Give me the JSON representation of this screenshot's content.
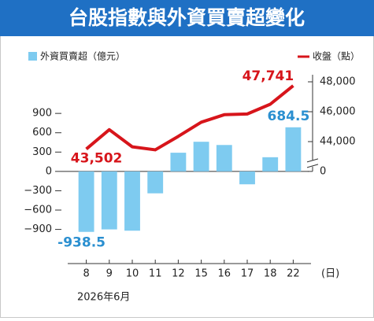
{
  "chart_data": {
    "type": "combo",
    "title": "台股指數與外資買賣超變化",
    "categories": [
      "8",
      "9",
      "10",
      "11",
      "12",
      "15",
      "16",
      "17",
      "18",
      "22"
    ],
    "x_unit": "(日)",
    "date_label": "2026年6月",
    "series": [
      {
        "name": "外資買賣超（億元）",
        "type": "bar",
        "color": "#7ecbf0",
        "label_color": "#2a8fd0",
        "values": [
          -938.5,
          -900,
          -920,
          -340,
          290,
          460,
          410,
          -200,
          220,
          684.5
        ],
        "value_labels": [
          "-938.5",
          null,
          null,
          null,
          null,
          null,
          null,
          null,
          null,
          "684.5"
        ]
      },
      {
        "name": "收盤（點）",
        "type": "line",
        "axis": "y2",
        "color": "#d7151b",
        "label_color": "#d7151b",
        "values": [
          43502,
          44800,
          43650,
          43450,
          44350,
          45300,
          45800,
          45850,
          46500,
          47741
        ],
        "value_labels": [
          "43,502",
          null,
          null,
          null,
          null,
          null,
          null,
          null,
          null,
          "47,741"
        ]
      }
    ],
    "ylim": [
      -1430,
      1500
    ],
    "yticks": [
      900,
      600,
      300,
      0,
      {
        "value": -300,
        "label": "−300"
      },
      {
        "value": -600,
        "label": "−600"
      },
      {
        "value": -900,
        "label": "−900"
      }
    ],
    "y2lim": [
      35840,
      48474
    ],
    "y2ticks": [
      0,
      {
        "value": 44000,
        "label": "44,000"
      },
      {
        "value": 46000,
        "label": "46,000"
      },
      {
        "value": 48000,
        "label": "48,000"
      }
    ]
  }
}
